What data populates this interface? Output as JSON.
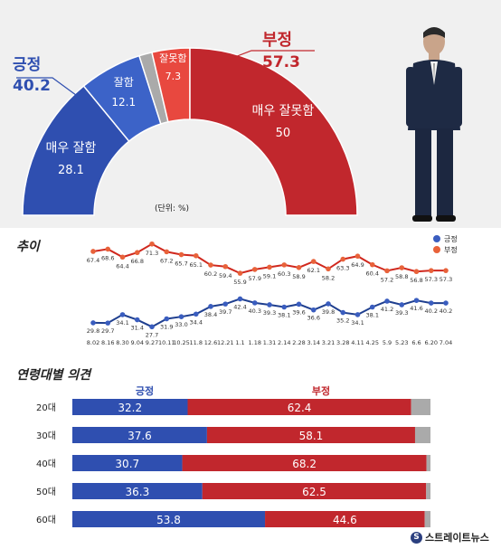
{
  "colors": {
    "positive": "#2f4fb0",
    "positive_light": "#3c63c8",
    "negative": "#c1272d",
    "negative_light": "#e8483f",
    "no_answer": "#aaaaaa",
    "line_positive": "#1f3f8f",
    "line_negative": "#d0281e",
    "marker_positive": "#3a5dbf",
    "marker_negative": "#e8623a"
  },
  "chart_data": [
    {
      "type": "pie",
      "style": "half-donut",
      "unit_note": "(단위: %)",
      "slices": [
        {
          "label": "매우 잘함",
          "value": 28.1,
          "color": "#2f4fb0"
        },
        {
          "label": "잘함",
          "value": 12.1,
          "color": "#3c63c8"
        },
        {
          "label": "",
          "value": 2.5,
          "color": "#aaaaaa"
        },
        {
          "label": "잘못함",
          "value": 7.3,
          "color": "#e8483f"
        },
        {
          "label": "매우 잘못함",
          "value": 50,
          "color": "#c1272d"
        }
      ],
      "totals": [
        {
          "label": "긍정",
          "value": "40.2"
        },
        {
          "label": "부정",
          "value": "57.3"
        }
      ]
    },
    {
      "type": "line",
      "title": "추이",
      "legend_position": "top-right",
      "categories": [
        "8.02",
        "8.16",
        "8.30",
        "9.04",
        "9.27",
        "10.11",
        "10.25",
        "11.8",
        "12.6",
        "12.21",
        "1.1",
        "1.18",
        "1.31",
        "2.14",
        "2.28",
        "3.14",
        "3.21",
        "3.28",
        "4.11",
        "4.25",
        "5.9",
        "5.23",
        "6.6",
        "6.20",
        "7.04"
      ],
      "series": [
        {
          "name": "긍정",
          "values": [
            29.8,
            29.7,
            34.1,
            31.4,
            27.7,
            31.9,
            33.0,
            34.4,
            38.4,
            39.7,
            42.4,
            40.3,
            39.3,
            38.1,
            39.6,
            36.6,
            39.8,
            35.2,
            34.1,
            38.1,
            41.2,
            39.3,
            41.6,
            40.2,
            40.2
          ],
          "labels": [
            "29.8",
            "29.7",
            "34.1",
            "31.4",
            "27.7",
            "31.9",
            "33.0",
            "34.4",
            "38.4",
            "39.7",
            "42.4",
            "40.3",
            "39.3",
            "38.1",
            "39.6",
            "36.6",
            "39.8",
            "35.2",
            "34.1",
            "38.1",
            "41.2",
            "39.3",
            "41.6",
            "40.2",
            ""
          ]
        },
        {
          "name": "부정",
          "values": [
            67.4,
            68.6,
            64.4,
            66.8,
            71.3,
            67.2,
            65.7,
            65.1,
            60.2,
            59.4,
            55.9,
            57.9,
            59.1,
            60.3,
            58.9,
            62.1,
            58.2,
            63.3,
            64.9,
            60.4,
            57.2,
            58.8,
            56.8,
            57.3,
            57.3
          ],
          "labels": [
            "67.4",
            "68.6",
            "64.4",
            "66.8",
            "71.3",
            "67.2",
            "65.7",
            "65.1",
            "60.2",
            "59.4",
            "55.9",
            "57.9",
            "59.1",
            "60.3",
            "58.9",
            "62.1",
            "58.2",
            "63.3",
            "64.9",
            "60.4",
            "57.2",
            "58.8",
            "56.8",
            "57.3",
            ""
          ]
        }
      ]
    },
    {
      "type": "bar",
      "orientation": "horizontal",
      "stacked": true,
      "title": "연령대별 의견",
      "categories": [
        "20대",
        "30대",
        "40대",
        "50대",
        "60대"
      ],
      "series": [
        {
          "name": "긍정",
          "values": [
            32.2,
            37.6,
            30.7,
            36.3,
            53.8
          ]
        },
        {
          "name": "부정",
          "values": [
            62.4,
            58.1,
            68.2,
            62.5,
            44.6
          ]
        },
        {
          "name": "",
          "values": [
            5.4,
            4.3,
            1.1,
            1.2,
            1.6
          ]
        }
      ],
      "xlim": [
        0,
        100
      ]
    }
  ],
  "logo": {
    "text": "스트레이트뉴스",
    "mark": "S"
  }
}
